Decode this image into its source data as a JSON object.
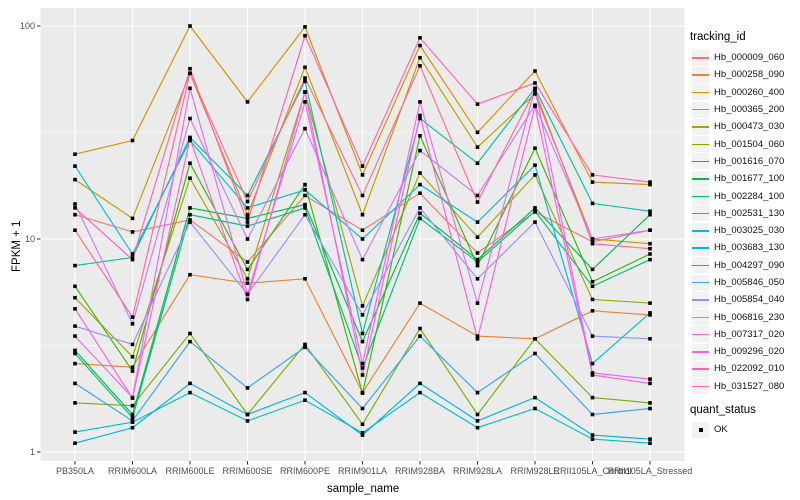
{
  "chart_data": {
    "type": "line",
    "title": "",
    "xlabel": "sample_name",
    "ylabel": "FPKM + 1",
    "y_scale": "log10",
    "y_ticks": [
      1,
      10,
      100
    ],
    "y_minor_ticks": [
      3.162,
      31.62
    ],
    "ylim": [
      1,
      110
    ],
    "grid": "major-and-minor, white on grey panel",
    "legend_position": "right",
    "legend_title": "tracking_id",
    "point_legend": {
      "title": "quant_status",
      "items": [
        {
          "label": "OK",
          "marker": "black-square"
        }
      ]
    },
    "panel_color": "#ebebeb",
    "x_categories": [
      "PB350LA",
      "RRIM600LA",
      "RRIM600LE",
      "RRIM600SE",
      "RRIM600PE",
      "RRIM901LA",
      "RRIM928BA",
      "RRIM928LA",
      "RRIM928LE",
      "RRII105LA_Control",
      "RRII105LA_Stressed"
    ],
    "series": [
      {
        "name": "Hb_000009_060",
        "color": "#F8766D",
        "values": [
          13,
          10.8,
          12.3,
          7.8,
          16,
          11,
          16.4,
          8.6,
          13.4,
          9.7,
          11
        ]
      },
      {
        "name": "Hb_000258_090",
        "color": "#EA8331",
        "values": [
          2.6,
          2.5,
          6.8,
          6.2,
          6.5,
          1.9,
          5.0,
          3.5,
          3.4,
          4.6,
          4.4
        ]
      },
      {
        "name": "Hb_000260_400",
        "color": "#D89000",
        "values": [
          25,
          29,
          100,
          44,
          99,
          20,
          81,
          31.7,
          61.5,
          18.5,
          18
        ]
      },
      {
        "name": "Hb_000365_200",
        "color": "#C09B00",
        "values": [
          19,
          12.5,
          60,
          13,
          64,
          13,
          71,
          27,
          48,
          10,
          9.5
        ]
      },
      {
        "name": "Hb_000473_030",
        "color": "#A3A500",
        "values": [
          5.3,
          2.8,
          19.3,
          6.5,
          49,
          4.85,
          20.4,
          10.2,
          20,
          5.2,
          5.0
        ]
      },
      {
        "name": "Hb_001504_060",
        "color": "#7CAE00",
        "values": [
          1.7,
          1.65,
          3.6,
          1.5,
          3.2,
          1.35,
          3.8,
          1.5,
          3.4,
          1.8,
          1.7
        ]
      },
      {
        "name": "Hb_001616_070",
        "color": "#39B600",
        "values": [
          6.0,
          2.4,
          22.7,
          7.2,
          18,
          1.89,
          30.5,
          7.5,
          26.7,
          6.3,
          8.5
        ]
      },
      {
        "name": "Hb_001677_100",
        "color": "#00BB4E",
        "values": [
          3.0,
          1.5,
          14,
          12.5,
          14.5,
          3.3,
          13.2,
          8.0,
          14,
          7.2,
          13
        ]
      },
      {
        "name": "Hb_002284_100",
        "color": "#00BF7D",
        "values": [
          2.9,
          1.45,
          13,
          11.5,
          14,
          2.48,
          12.5,
          7.8,
          13.5,
          6.0,
          8.0
        ]
      },
      {
        "name": "Hb_002531_130",
        "color": "#00C1A3",
        "values": [
          7.5,
          8.2,
          30,
          16,
          55,
          3.6,
          36.8,
          22.7,
          51,
          14.7,
          13.5
        ]
      },
      {
        "name": "Hb_003025_030",
        "color": "#00BFC4",
        "values": [
          1.24,
          1.38,
          1.9,
          1.4,
          1.75,
          1.23,
          1.9,
          1.3,
          1.6,
          1.15,
          1.1
        ]
      },
      {
        "name": "Hb_003683_130",
        "color": "#00BAE0",
        "values": [
          22,
          8.5,
          29,
          14,
          17,
          10,
          18,
          12,
          22.2,
          2.6,
          4.5
        ]
      },
      {
        "name": "Hb_004297_090",
        "color": "#00B0F6",
        "values": [
          1.1,
          1.3,
          2.1,
          1.5,
          1.9,
          1.2,
          2.1,
          1.4,
          1.8,
          1.2,
          1.15
        ]
      },
      {
        "name": "Hb_005846_050",
        "color": "#35A2FF",
        "values": [
          2.1,
          1.4,
          3.3,
          2.0,
          3.1,
          1.6,
          3.5,
          1.9,
          2.9,
          1.5,
          1.6
        ]
      },
      {
        "name": "Hb_005854_040",
        "color": "#9590FF",
        "values": [
          3.9,
          3.2,
          12,
          5.5,
          13,
          4.4,
          14,
          6.5,
          12,
          3.5,
          3.4
        ]
      },
      {
        "name": "Hb_006816_230",
        "color": "#C77CFF",
        "values": [
          14.6,
          4.0,
          36.8,
          10,
          33,
          8.0,
          26,
          16,
          42.5,
          10,
          11
        ]
      },
      {
        "name": "Hb_007317_020",
        "color": "#E76BF3",
        "values": [
          3.5,
          1.8,
          51,
          5.5,
          44,
          2.6,
          44,
          5.0,
          51,
          2.35,
          2.2
        ]
      },
      {
        "name": "Hb_009296_020",
        "color": "#FA62DB",
        "values": [
          4.7,
          1.79,
          29.5,
          5.2,
          49,
          2.3,
          38,
          3.4,
          42,
          2.3,
          2.1
        ]
      },
      {
        "name": "Hb_022092_010",
        "color": "#FF62BC",
        "values": [
          14,
          8.0,
          63,
          12,
          90,
          22,
          88,
          43,
          54,
          20,
          18.5
        ]
      },
      {
        "name": "Hb_031527_080",
        "color": "#FF6A98",
        "values": [
          11,
          4.3,
          60,
          15,
          57,
          16,
          65,
          14.9,
          50,
          9.5,
          9.0
        ]
      }
    ]
  },
  "labels": {
    "xlabel": "sample_name",
    "ylabel": "FPKM + 1",
    "tracking_legend_title": "tracking_id",
    "quant_legend_title": "quant_status",
    "quant_ok_label": "OK"
  },
  "colors": {
    "panel_bg": "#ebebeb",
    "grid": "#ffffff",
    "tick_text": "#4d4d4d",
    "point": "#000000",
    "legend_key_bg": "#f2f2f2"
  }
}
